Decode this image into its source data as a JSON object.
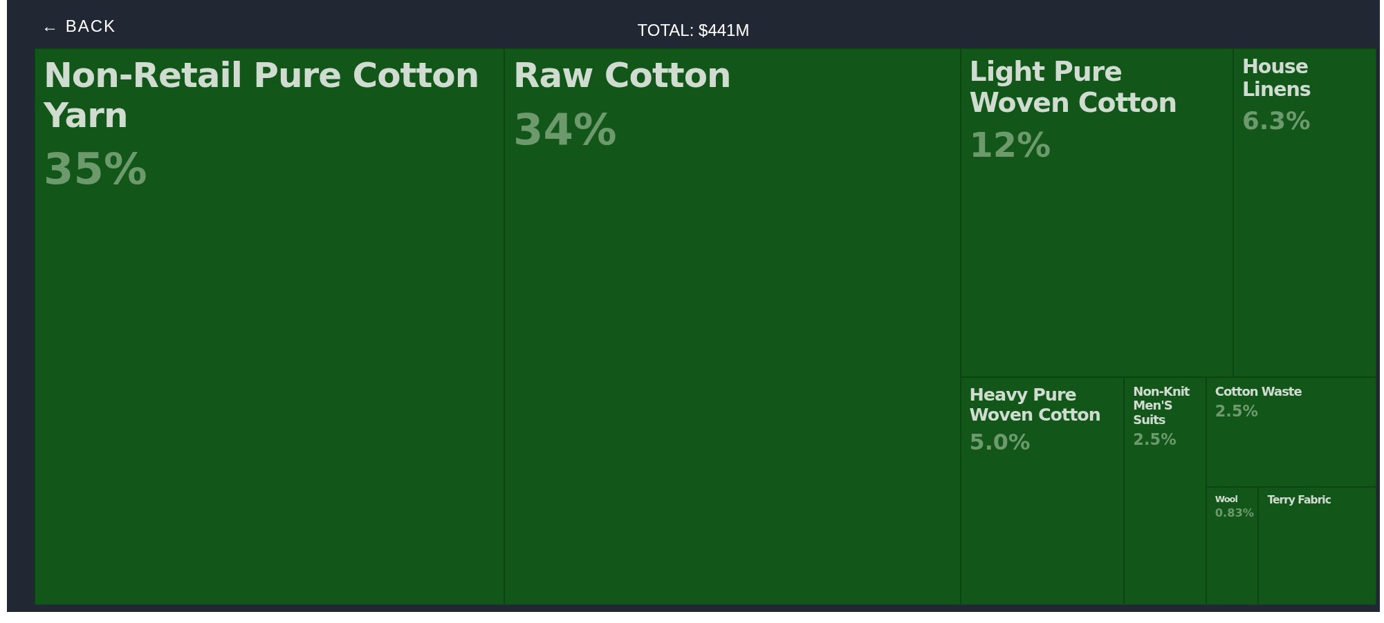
{
  "chart_data": {
    "type": "other",
    "title": "TOTAL: $441M",
    "annotations": [
      "← BACK"
    ],
    "categories": [
      "Non-Retail Pure Cotton Yarn",
      "Raw Cotton",
      "Light Pure Woven Cotton",
      "House Linens",
      "Heavy Pure Woven Cotton",
      "Non-Knit Men'S Suits",
      "Cotton Waste",
      "Wool",
      "Terry Fabric"
    ],
    "values": [
      35,
      34,
      12,
      6.3,
      5.0,
      2.5,
      2.5,
      0.83,
      null
    ],
    "value_labels": [
      "35%",
      "34%",
      "12%",
      "6.3%",
      "5.0%",
      "2.5%",
      "2.5%",
      "0.83%",
      null
    ],
    "color": "#12561a"
  }
}
